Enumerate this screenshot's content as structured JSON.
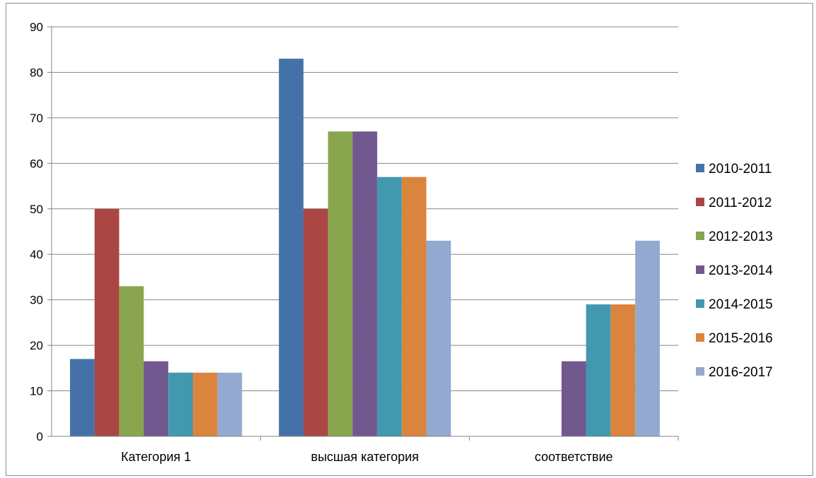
{
  "chart_data": {
    "type": "bar",
    "categories": [
      "Категория 1",
      "высшая категория",
      "соответствие"
    ],
    "series": [
      {
        "name": "2010-2011",
        "values": [
          17,
          83,
          0
        ]
      },
      {
        "name": "2011-2012",
        "values": [
          50,
          50,
          0
        ]
      },
      {
        "name": "2012-2013",
        "values": [
          33,
          67,
          0
        ]
      },
      {
        "name": "2013-2014",
        "values": [
          16.5,
          67,
          16.5
        ]
      },
      {
        "name": "2014-2015",
        "values": [
          14,
          57,
          29
        ]
      },
      {
        "name": "2015-2016",
        "values": [
          14,
          57,
          29
        ]
      },
      {
        "name": "2016-2017",
        "values": [
          14,
          43,
          43
        ]
      }
    ],
    "colors": [
      "#4472a8",
      "#aa4644",
      "#89a54e",
      "#71588f",
      "#4198af",
      "#db843d",
      "#93a9cf"
    ],
    "ylim": [
      0,
      90
    ],
    "yticks": [
      "0",
      "10",
      "20",
      "30",
      "40",
      "50",
      "60",
      "70",
      "80",
      "90"
    ],
    "grid": true,
    "legend": "right"
  }
}
